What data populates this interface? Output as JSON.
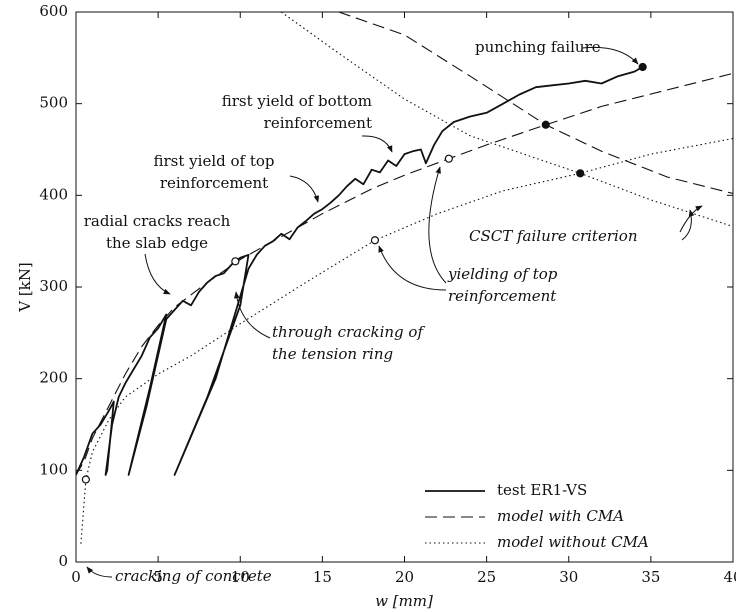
{
  "chart_data": {
    "type": "line",
    "x_label": "w [mm]",
    "y_label": "V [kN]",
    "xlim": [
      0,
      40
    ],
    "ylim": [
      0,
      600
    ],
    "xticks": [
      0,
      5,
      10,
      15,
      20,
      25,
      30,
      35,
      40
    ],
    "yticks": [
      0,
      100,
      200,
      300,
      400,
      500,
      600
    ],
    "series": [
      {
        "name": "test ER1-VS",
        "color": "#111111",
        "style": "solid",
        "x": [
          0,
          0.5,
          1,
          1.5,
          2,
          2.3,
          1.9,
          1.8,
          2.2,
          2.6,
          3,
          3.5,
          4,
          4.5,
          5,
          5.5,
          4.5,
          3.2,
          4.3,
          5.5,
          6,
          6.5,
          7,
          7.5,
          8,
          8.5,
          9,
          9.5,
          10,
          10.5,
          10,
          8,
          6,
          8.5,
          10.5,
          11,
          11.5,
          12,
          12.5,
          13,
          13.5,
          14,
          14.5,
          15,
          15.5,
          16,
          16.5,
          17,
          17.5,
          18,
          18.5,
          19,
          19.5,
          20,
          20.5,
          21,
          21.3,
          21.8,
          22.3,
          23,
          24,
          25,
          26,
          27,
          28,
          29,
          30,
          31,
          32,
          33,
          34,
          34.5
        ],
        "values": [
          95,
          115,
          140,
          150,
          165,
          175,
          100,
          95,
          150,
          180,
          195,
          210,
          225,
          245,
          255,
          270,
          190,
          95,
          170,
          265,
          275,
          285,
          280,
          295,
          305,
          312,
          315,
          325,
          332,
          335,
          280,
          180,
          95,
          200,
          320,
          335,
          345,
          350,
          358,
          352,
          365,
          372,
          380,
          385,
          392,
          400,
          410,
          418,
          412,
          428,
          425,
          438,
          432,
          445,
          448,
          450,
          435,
          455,
          470,
          480,
          486,
          490,
          500,
          510,
          518,
          520,
          522,
          525,
          522,
          530,
          535,
          540
        ]
      },
      {
        "name": "model with CMA",
        "color": "#111111",
        "style": "dashed",
        "x": [
          0,
          0.5,
          1,
          2,
          3,
          4,
          5,
          6,
          8,
          10,
          12,
          15,
          18,
          20,
          22.7,
          25,
          28.6,
          32,
          36,
          40
        ],
        "values": [
          95,
          110,
          135,
          170,
          205,
          235,
          258,
          278,
          305,
          330,
          350,
          380,
          407,
          422,
          440,
          455,
          477,
          497,
          515,
          533
        ]
      },
      {
        "name": "model without CMA",
        "color": "#111111",
        "style": "dotted",
        "x": [
          0.3,
          0.6,
          1,
          2,
          3,
          5,
          7,
          10,
          14,
          18.2,
          22,
          26,
          30.7,
          35,
          40
        ],
        "values": [
          20,
          90,
          120,
          155,
          180,
          205,
          225,
          260,
          305,
          351,
          380,
          405,
          424,
          445,
          462
        ]
      },
      {
        "color": "#111111",
        "style": "dashed",
        "x": [
          16,
          20,
          24,
          28.6,
          32,
          36,
          40
        ],
        "values": [
          600,
          575,
          530,
          477,
          448,
          420,
          402
        ]
      },
      {
        "color": "#111111",
        "style": "dotted",
        "x": [
          12.5,
          16,
          20,
          24,
          30.7,
          35,
          40
        ],
        "values": [
          600,
          555,
          505,
          465,
          424,
          395,
          366
        ]
      }
    ],
    "points": [
      {
        "x": 34.5,
        "y": 540,
        "fill": "#111111"
      },
      {
        "x": 28.6,
        "y": 477,
        "fill": "#111111"
      },
      {
        "x": 30.7,
        "y": 424,
        "fill": "#111111"
      },
      {
        "x": 0.6,
        "y": 90,
        "fill": "#ffffff"
      },
      {
        "x": 9.7,
        "y": 328,
        "fill": "#ffffff"
      },
      {
        "x": 22.7,
        "y": 440,
        "fill": "#ffffff"
      },
      {
        "x": 18.2,
        "y": 351,
        "fill": "#ffffff"
      }
    ],
    "annotations": [
      {
        "lines": [
          "punching failure"
        ]
      },
      {
        "lines": [
          "first yield of bottom",
          "reinforcement"
        ]
      },
      {
        "lines": [
          "first yield of top",
          "reinforcement"
        ]
      },
      {
        "lines": [
          "radial cracks reach",
          "the slab edge"
        ]
      },
      {
        "lines": [
          "through cracking of",
          "the tension ring"
        ]
      },
      {
        "lines": [
          "yielding of top",
          "reinforcement"
        ]
      },
      {
        "lines": [
          "CSCT failure criterion"
        ]
      },
      {
        "lines": [
          "cracking of concrete"
        ]
      }
    ]
  }
}
